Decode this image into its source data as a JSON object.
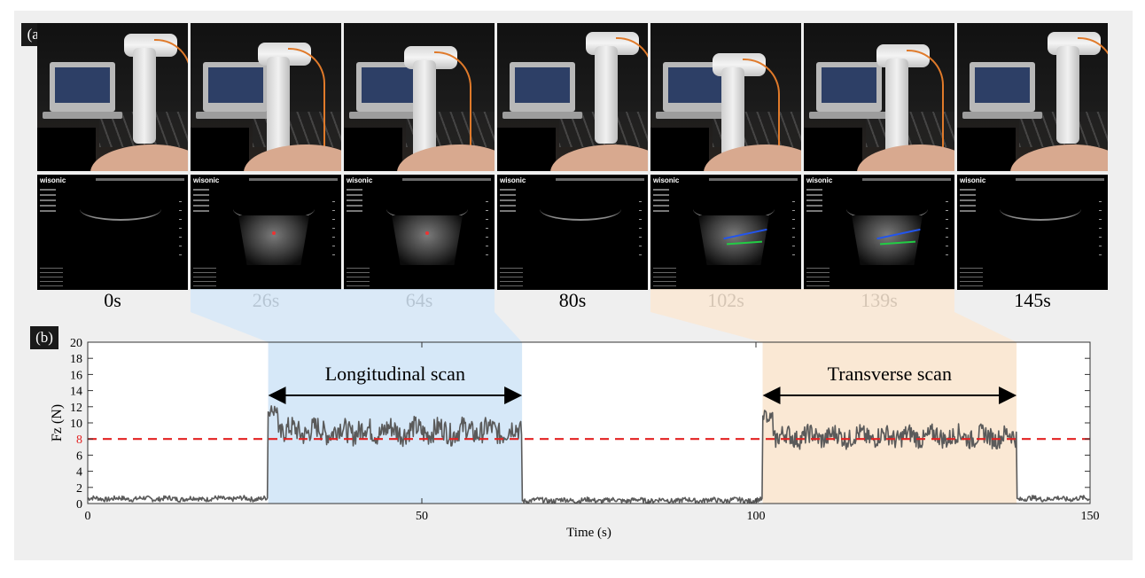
{
  "figure": {
    "panel_labels": [
      "(a)",
      "(b)"
    ],
    "us_brand": "wisonic",
    "frames": [
      {
        "time": "0s",
        "us": "empty"
      },
      {
        "time": "26s",
        "us": "long"
      },
      {
        "time": "64s",
        "us": "long"
      },
      {
        "time": "80s",
        "us": "empty"
      },
      {
        "time": "102s",
        "us": "trans"
      },
      {
        "time": "139s",
        "us": "trans"
      },
      {
        "time": "145s",
        "us": "empty"
      }
    ],
    "colors": {
      "longitudinal_band": "#d6e8f8",
      "transverse_band": "#fae8d4",
      "signal": "#5a5a5a",
      "target_line": "#e32222"
    }
  },
  "chart_data": {
    "type": "line",
    "xlabel": "Time (s)",
    "ylabel": "Fz (N)",
    "xlim": [
      0,
      150
    ],
    "ylim": [
      0,
      20
    ],
    "xticks": [
      0,
      50,
      100,
      150
    ],
    "yticks": [
      0,
      2,
      4,
      6,
      8,
      10,
      12,
      14,
      16,
      18,
      20
    ],
    "grid": false,
    "target_force": 8,
    "annotations": [
      {
        "text": "Longitudinal scan",
        "x_start": 27,
        "x_end": 65
      },
      {
        "text": "Transverse scan",
        "x_start": 101,
        "x_end": 139
      }
    ],
    "series": [
      {
        "segments": [
          {
            "x_start": 0,
            "x_end": 27,
            "mean": 0.6,
            "noise": 0.6
          },
          {
            "x_start": 27,
            "x_end": 65,
            "mean": 9.0,
            "noise": 2.8
          },
          {
            "x_start": 65,
            "x_end": 101,
            "mean": 0.4,
            "noise": 0.6
          },
          {
            "x_start": 101,
            "x_end": 139,
            "mean": 8.3,
            "noise": 2.4
          },
          {
            "x_start": 139,
            "x_end": 150,
            "mean": 0.6,
            "noise": 0.6
          }
        ]
      }
    ]
  }
}
